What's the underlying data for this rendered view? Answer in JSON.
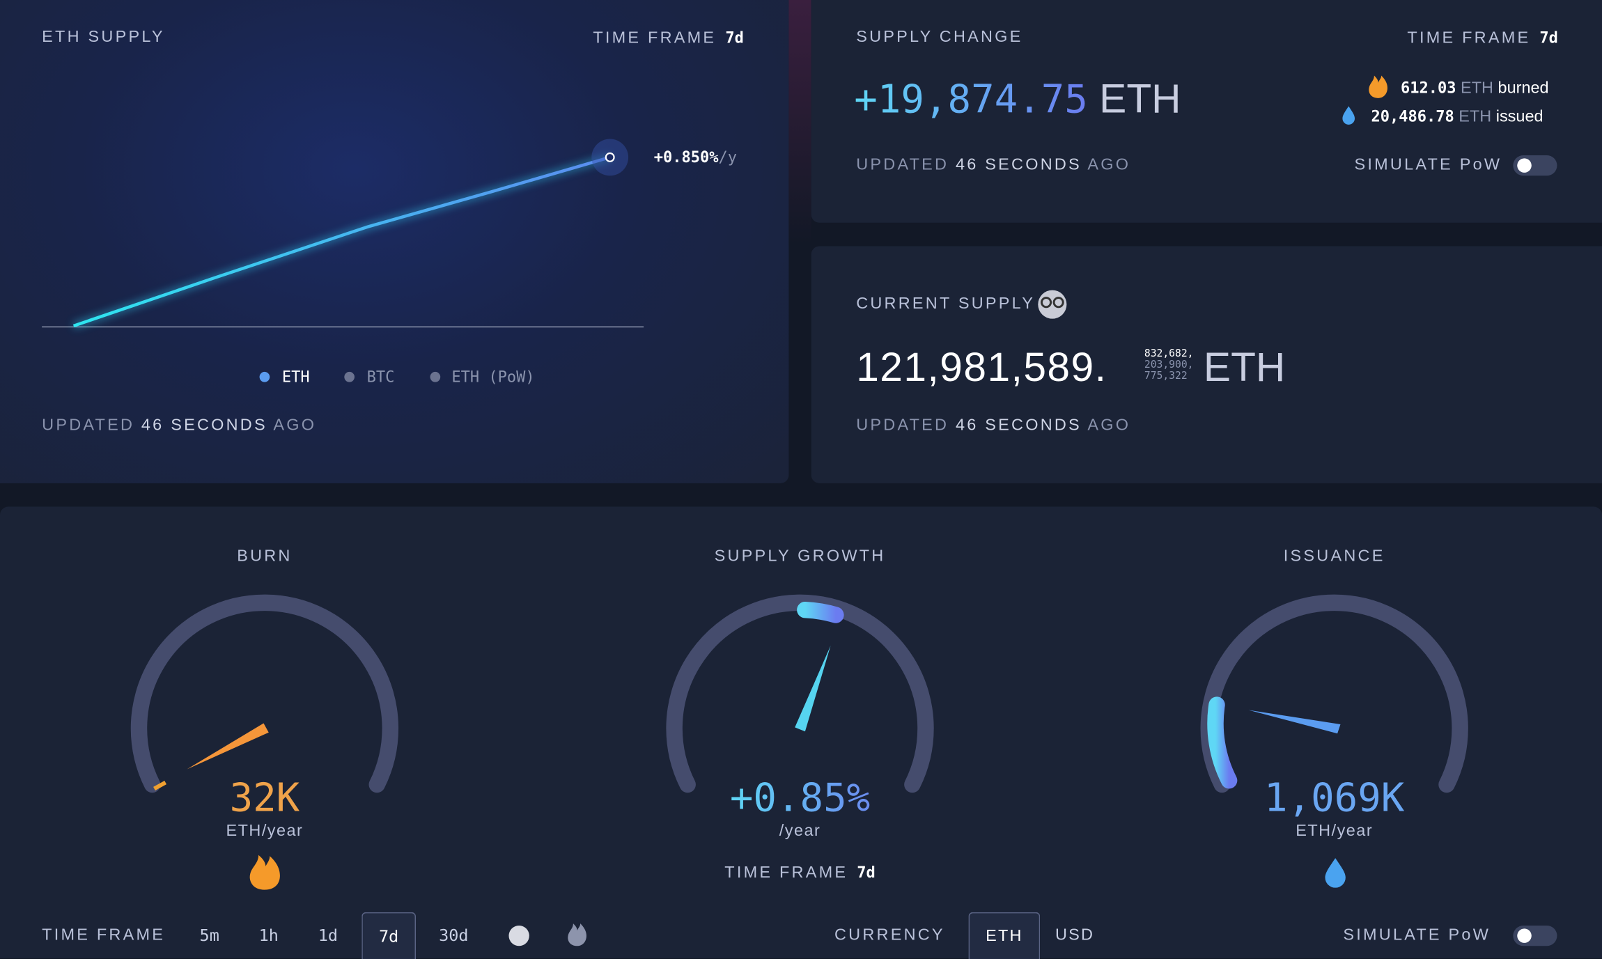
{
  "eth_supply": {
    "title": "ETH SUPPLY",
    "time_frame_label": "TIME FRAME",
    "time_frame": "7d",
    "rate": "+0.850%",
    "rate_unit": "/y",
    "legend": [
      "ETH",
      "BTC",
      "ETH (PoW)"
    ],
    "updated": {
      "prefix": "UPDATED",
      "value": "46 SECONDS",
      "suffix": "AGO"
    }
  },
  "supply_change": {
    "title": "SUPPLY CHANGE",
    "time_frame_label": "TIME FRAME",
    "time_frame": "7d",
    "amount": "+19,874.75",
    "unit": "ETH",
    "burned": {
      "value": "612.03",
      "unit": "ETH",
      "label": "burned"
    },
    "issued": {
      "value": "20,486.78",
      "unit": "ETH",
      "label": "issued"
    },
    "updated": {
      "prefix": "UPDATED",
      "value": "46 SECONDS",
      "suffix": "AGO"
    },
    "simulate_label": "SIMULATE PoW"
  },
  "current_supply": {
    "title": "CURRENT SUPPLY",
    "whole": "121,981,589.",
    "fraction": [
      "832,682,",
      "203,900,",
      "775,322"
    ],
    "unit": "ETH",
    "updated": {
      "prefix": "UPDATED",
      "value": "46 SECONDS",
      "suffix": "AGO"
    }
  },
  "gauges": [
    {
      "title": "BURN",
      "value": "32K",
      "unit": "ETH/year"
    },
    {
      "title": "SUPPLY GROWTH",
      "value": "+0.85%",
      "unit": "/year",
      "time_frame_label": "TIME FRAME",
      "time_frame": "7d"
    },
    {
      "title": "ISSUANCE",
      "value": "1,069K",
      "unit": "ETH/year"
    }
  ],
  "footer": {
    "time_frame_label": "TIME FRAME",
    "time_frames": [
      "5m",
      "1h",
      "1d",
      "7d",
      "30d"
    ],
    "currency_label": "CURRENCY",
    "currencies": [
      "ETH",
      "USD"
    ],
    "simulate_label": "SIMULATE PoW"
  }
}
